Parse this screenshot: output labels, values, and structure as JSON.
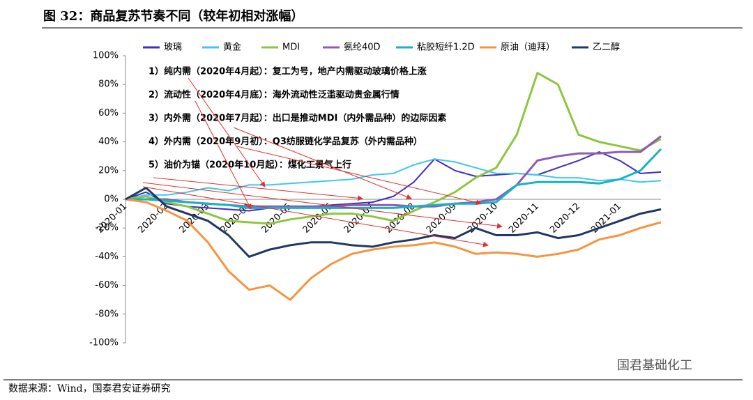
{
  "chart_data": {
    "type": "line",
    "title": "图 32：商品复苏节奏不同（较年初相对涨幅）",
    "source": "数据来源：Wind，国泰君安证券研究",
    "watermark": "国君基础化工",
    "annotations": [
      "1）纯内需（2020年4月起）：复工为号，地产内需驱动玻璃价格上涨",
      "2）流动性（2020年4月底）：海外流动性泛滥驱动贵金属行情",
      "3）内外需（2020年7月起）：出口是推动MDI（内外需品种）的边际因素",
      "4）外内需（2020年9月初）：Q3纺服链化学品复苏（外内需品种）",
      "5）油价为锚（2020年10月起）：煤化工景气上行"
    ],
    "categories": [
      "2020-01",
      null,
      "2020-02",
      null,
      "2020-03",
      null,
      "2020-04",
      null,
      "2020-05",
      null,
      "2020-06",
      null,
      "2020-07",
      null,
      "2020-08",
      null,
      "2020-09",
      null,
      "2020-10",
      null,
      "2020-11",
      null,
      "2020-12",
      null,
      "2021-01",
      null,
      null
    ],
    "ylim": [
      -100,
      100
    ],
    "yticks": [
      {
        "value": -100,
        "label": "-100%"
      },
      {
        "value": -80,
        "label": "-80%"
      },
      {
        "value": -60,
        "label": "-60%"
      },
      {
        "value": -40,
        "label": "-40%"
      },
      {
        "value": -20,
        "label": "-20%"
      },
      {
        "value": 0,
        "label": "0%"
      },
      {
        "value": 20,
        "label": "20%"
      },
      {
        "value": 40,
        "label": "40%"
      },
      {
        "value": 60,
        "label": "60%"
      },
      {
        "value": 80,
        "label": "80%"
      },
      {
        "value": 100,
        "label": "100%"
      }
    ],
    "legend": "top",
    "series": [
      {
        "name": "玻璃",
        "color": "#3f2fc0",
        "values": [
          0,
          5,
          -3,
          -5,
          -6,
          -7,
          -8,
          -6,
          -5,
          -5,
          -4,
          -3,
          -2,
          2,
          12,
          28,
          20,
          16,
          17,
          18,
          17,
          22,
          27,
          33,
          27,
          18,
          19
        ]
      },
      {
        "name": "黄金",
        "color": "#3cc8f0",
        "values": [
          0,
          3,
          3,
          5,
          8,
          6,
          10,
          10,
          11,
          12,
          13,
          14,
          17,
          18,
          24,
          28,
          26,
          22,
          18,
          18,
          17,
          15,
          15,
          13,
          14,
          12,
          13
        ]
      },
      {
        "name": "MDI",
        "color": "#8dc63f",
        "values": [
          0,
          2,
          -2,
          -5,
          -10,
          -15,
          -16,
          -17,
          -14,
          -12,
          -10,
          -10,
          -12,
          -15,
          -8,
          -2,
          5,
          15,
          22,
          45,
          88,
          80,
          45,
          40,
          37,
          34,
          42
        ]
      },
      {
        "name": "氨纶40D",
        "color": "#8e5bb5",
        "values": [
          0,
          0,
          0,
          -2,
          -3,
          -4,
          -5,
          -5,
          -5,
          -5,
          -5,
          -4,
          -4,
          -4,
          -5,
          -5,
          -3,
          -2,
          0,
          10,
          27,
          30,
          32,
          32,
          33,
          33,
          44
        ]
      },
      {
        "name": "粘胶短纤1.2D",
        "color": "#17b2c8",
        "values": [
          0,
          0,
          -1,
          -2,
          -3,
          -4,
          -6,
          -6,
          -6,
          -6,
          -6,
          -6,
          -6,
          -6,
          -5,
          -4,
          -3,
          -3,
          -2,
          10,
          12,
          12,
          12,
          11,
          14,
          20,
          35
        ]
      },
      {
        "name": "原油（迪拜）",
        "color": "#f7943d",
        "values": [
          0,
          -2,
          -8,
          -15,
          -30,
          -50,
          -63,
          -60,
          -70,
          -55,
          -45,
          -38,
          -35,
          -33,
          -32,
          -30,
          -33,
          -38,
          -37,
          -38,
          -40,
          -38,
          -35,
          -28,
          -25,
          -20,
          -16
        ]
      },
      {
        "name": "乙二醇",
        "color": "#1f3864",
        "values": [
          0,
          8,
          -5,
          -10,
          -15,
          -25,
          -40,
          -35,
          -32,
          -30,
          -30,
          -32,
          -33,
          -30,
          -28,
          -25,
          -27,
          -20,
          -25,
          -25,
          -23,
          -27,
          -25,
          -20,
          -15,
          -10,
          -7
        ]
      }
    ]
  }
}
